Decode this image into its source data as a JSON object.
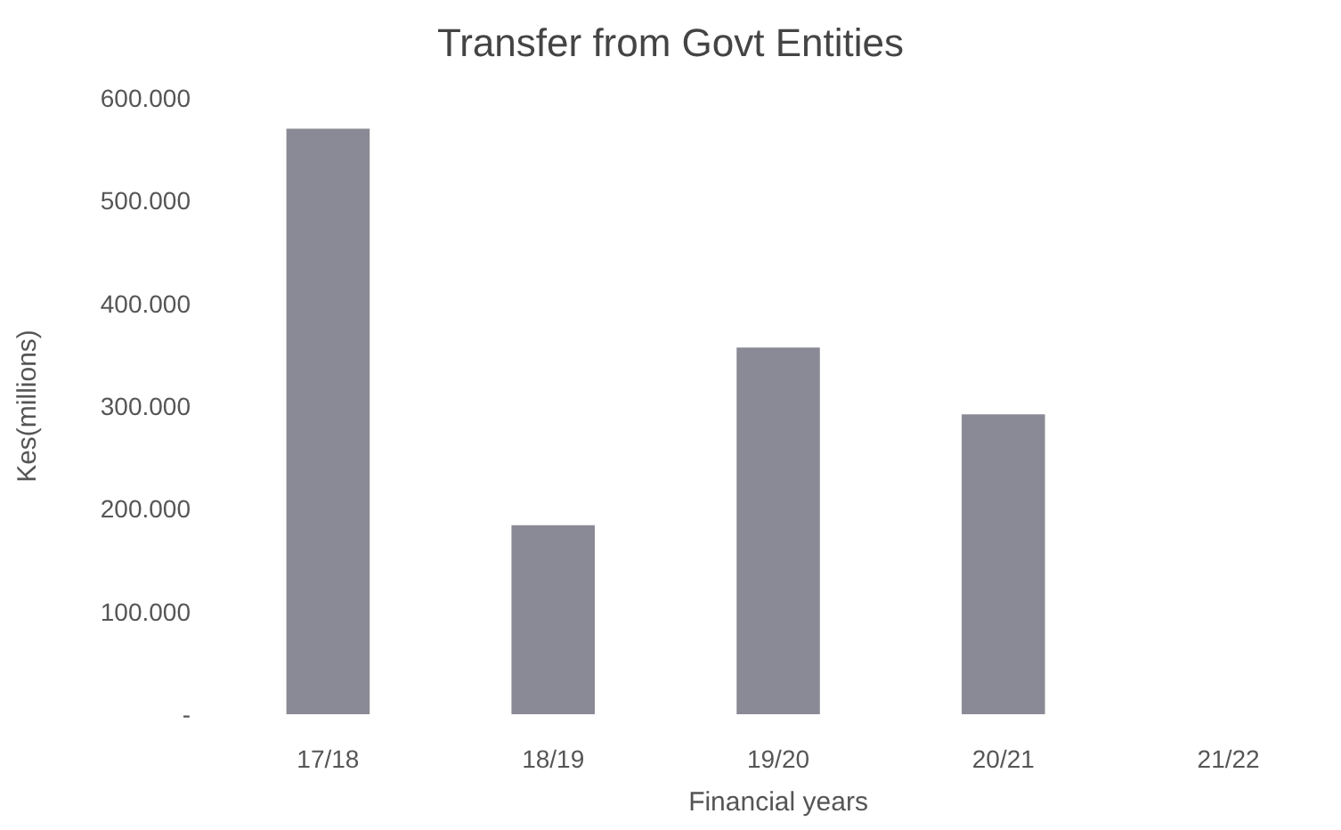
{
  "chart_data": {
    "type": "bar",
    "title": "Transfer from Govt Entities",
    "xlabel": "Financial years",
    "ylabel": "Kes(millions)",
    "categories": [
      "17/18",
      "18/19",
      "19/20",
      "20/21",
      "21/22"
    ],
    "values": [
      570,
      184,
      357,
      292,
      null
    ],
    "color": "#8a8a96",
    "ylim": [
      0,
      600
    ],
    "yticks": [
      {
        "value": 0,
        "label": "-"
      },
      {
        "value": 100,
        "label": "100.000"
      },
      {
        "value": 200,
        "label": "200.000"
      },
      {
        "value": 300,
        "label": "300.000"
      },
      {
        "value": 400,
        "label": "400.000"
      },
      {
        "value": 500,
        "label": "500.000"
      },
      {
        "value": 600,
        "label": "600.000"
      }
    ],
    "grid": false
  }
}
